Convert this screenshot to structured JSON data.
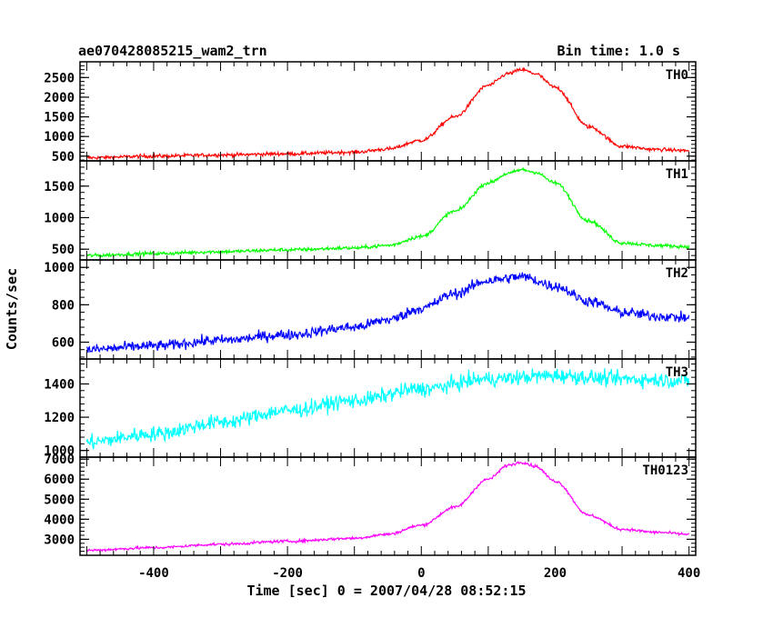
{
  "chart_data": {
    "type": "line",
    "title": "ae070428085215_wam2_trn",
    "bin_time": "Bin time: 1.0 s",
    "xlabel": "Time [sec] 0 = 2007/04/28 08:52:15",
    "ylabel": "Counts/sec",
    "xlim": [
      -510,
      410
    ],
    "x_ticks": [
      -400,
      -200,
      0,
      200,
      400
    ],
    "series": [
      {
        "name": "TH0",
        "color": "#ff0000",
        "ylim": [
          380,
          2900
        ],
        "y_ticks": [
          500,
          1000,
          1500,
          2000,
          2500
        ],
        "x": [
          -500,
          -400,
          -300,
          -200,
          -100,
          -50,
          0,
          50,
          100,
          130,
          150,
          170,
          200,
          250,
          300,
          350,
          400
        ],
        "values": [
          460,
          500,
          530,
          560,
          600,
          680,
          900,
          1500,
          2300,
          2600,
          2700,
          2600,
          2250,
          1250,
          750,
          670,
          640
        ],
        "noise": 45
      },
      {
        "name": "TH1",
        "color": "#00ff00",
        "ylim": [
          330,
          1900
        ],
        "y_ticks": [
          500,
          1000,
          1500
        ],
        "x": [
          -500,
          -400,
          -300,
          -200,
          -100,
          -50,
          0,
          50,
          100,
          130,
          150,
          170,
          200,
          250,
          300,
          350,
          400
        ],
        "values": [
          400,
          430,
          460,
          490,
          520,
          560,
          700,
          1100,
          1550,
          1700,
          1760,
          1720,
          1550,
          950,
          600,
          560,
          540
        ],
        "noise": 28
      },
      {
        "name": "TH2",
        "color": "#0000ff",
        "ylim": [
          510,
          1040
        ],
        "y_ticks": [
          600,
          800,
          1000
        ],
        "x": [
          -500,
          -400,
          -300,
          -200,
          -100,
          -50,
          0,
          50,
          100,
          150,
          200,
          250,
          300,
          350,
          400
        ],
        "values": [
          560,
          580,
          610,
          640,
          680,
          720,
          780,
          860,
          930,
          950,
          900,
          820,
          760,
          740,
          730
        ],
        "noise": 28
      },
      {
        "name": "TH3",
        "color": "#00ffff",
        "ylim": [
          960,
          1550
        ],
        "y_ticks": [
          1000,
          1200,
          1400
        ],
        "x": [
          -500,
          -400,
          -300,
          -200,
          -100,
          0,
          100,
          200,
          300,
          400
        ],
        "values": [
          1050,
          1100,
          1170,
          1240,
          1300,
          1370,
          1430,
          1450,
          1430,
          1420
        ],
        "noise": 45
      },
      {
        "name": "TH0123",
        "color": "#ff00ff",
        "ylim": [
          2200,
          7100
        ],
        "y_ticks": [
          3000,
          4000,
          5000,
          6000,
          7000
        ],
        "x": [
          -500,
          -400,
          -300,
          -200,
          -100,
          -50,
          0,
          50,
          100,
          130,
          150,
          170,
          200,
          250,
          300,
          350,
          400
        ],
        "values": [
          2450,
          2580,
          2750,
          2900,
          3050,
          3250,
          3700,
          4600,
          6000,
          6700,
          6850,
          6650,
          5900,
          4200,
          3500,
          3350,
          3250
        ],
        "noise": 70
      }
    ]
  }
}
